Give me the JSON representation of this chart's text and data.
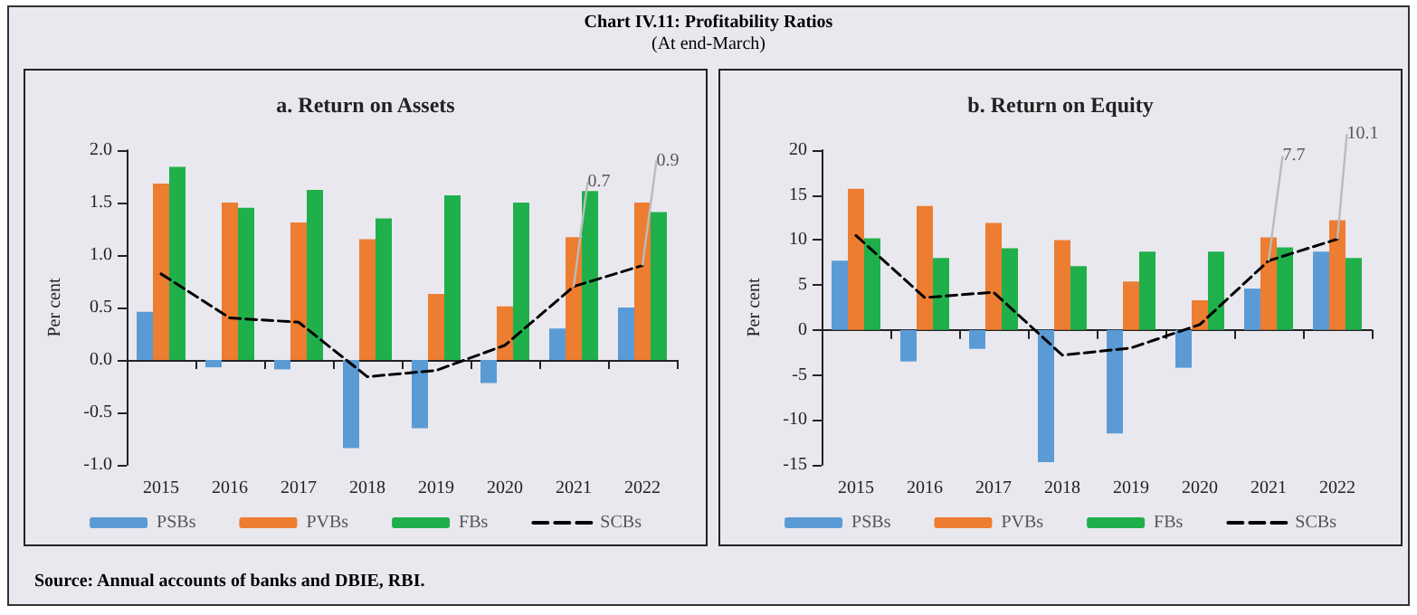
{
  "chart_data": [
    {
      "type": "bar",
      "title": "a. Return on Assets",
      "ylabel": "Per cent",
      "annotations": [
        "Chart IV.11: Profitability Ratios",
        "(At end-March)",
        {
          "text": "0.7",
          "x": "2021",
          "y": 0.7
        },
        {
          "text": "0.9",
          "x": "2022",
          "y": 0.9
        }
      ],
      "categories": [
        "2015",
        "2016",
        "2017",
        "2018",
        "2019",
        "2020",
        "2021",
        "2022"
      ],
      "series": [
        {
          "name": "PSBs",
          "color": "#5b9bd5",
          "values": [
            0.46,
            -0.07,
            -0.09,
            -0.84,
            -0.65,
            -0.22,
            0.3,
            0.5
          ]
        },
        {
          "name": "PVBs",
          "color": "#ed7d31",
          "values": [
            1.68,
            1.5,
            1.31,
            1.15,
            0.63,
            0.51,
            1.17,
            1.5
          ]
        },
        {
          "name": "FBs",
          "color": "#1fb04b",
          "values": [
            1.84,
            1.45,
            1.62,
            1.35,
            1.57,
            1.5,
            1.61,
            1.41
          ]
        },
        {
          "name": "SCBs",
          "type": "line",
          "color": "#000000",
          "line_style": "dashed",
          "marker": "none",
          "values": [
            0.82,
            0.4,
            0.36,
            -0.16,
            -0.1,
            0.14,
            0.7,
            0.9
          ]
        }
      ],
      "ylim": [
        -1,
        2
      ],
      "yticks": [
        {
          "value": -1,
          "label": "-1.0"
        },
        {
          "value": -0.5,
          "label": "-0.5"
        },
        {
          "value": 0,
          "label": "0.0"
        },
        {
          "value": 0.5,
          "label": "0.5"
        },
        {
          "value": 1,
          "label": "1.0"
        },
        {
          "value": 1.5,
          "label": "1.5"
        },
        {
          "value": 2,
          "label": "2.0"
        }
      ],
      "legend": "bottom"
    },
    {
      "type": "bar",
      "title": "b. Return on Equity",
      "ylabel": "Per cent",
      "annotations": [
        "Source: Annual accounts of banks and DBIE, RBI.",
        {
          "text": "7.7",
          "x": "2021",
          "y": 7.7
        },
        {
          "text": "10.1",
          "x": "2022",
          "y": 10.1
        }
      ],
      "categories": [
        "2015",
        "2016",
        "2017",
        "2018",
        "2019",
        "2020",
        "2021",
        "2022"
      ],
      "series": [
        {
          "name": "PSBs",
          "color": "#5b9bd5",
          "values": [
            7.7,
            -3.5,
            -2.1,
            -14.7,
            -11.5,
            -4.2,
            4.6,
            8.7
          ]
        },
        {
          "name": "PVBs",
          "color": "#ed7d31",
          "values": [
            15.7,
            13.8,
            11.9,
            10.0,
            5.4,
            3.3,
            10.3,
            12.2
          ]
        },
        {
          "name": "FBs",
          "color": "#1fb04b",
          "values": [
            10.2,
            8.0,
            9.1,
            7.1,
            8.7,
            8.7,
            9.2,
            8.0
          ]
        },
        {
          "name": "SCBs",
          "type": "line",
          "color": "#000000",
          "line_style": "dashed",
          "marker": "none",
          "values": [
            10.5,
            3.6,
            4.2,
            -2.8,
            -2.0,
            0.6,
            7.7,
            10.1
          ]
        }
      ],
      "ylim": [
        -15,
        20
      ],
      "yticks": [
        -15,
        -10,
        -5,
        0,
        5,
        10,
        15,
        20
      ],
      "legend": "bottom"
    }
  ]
}
